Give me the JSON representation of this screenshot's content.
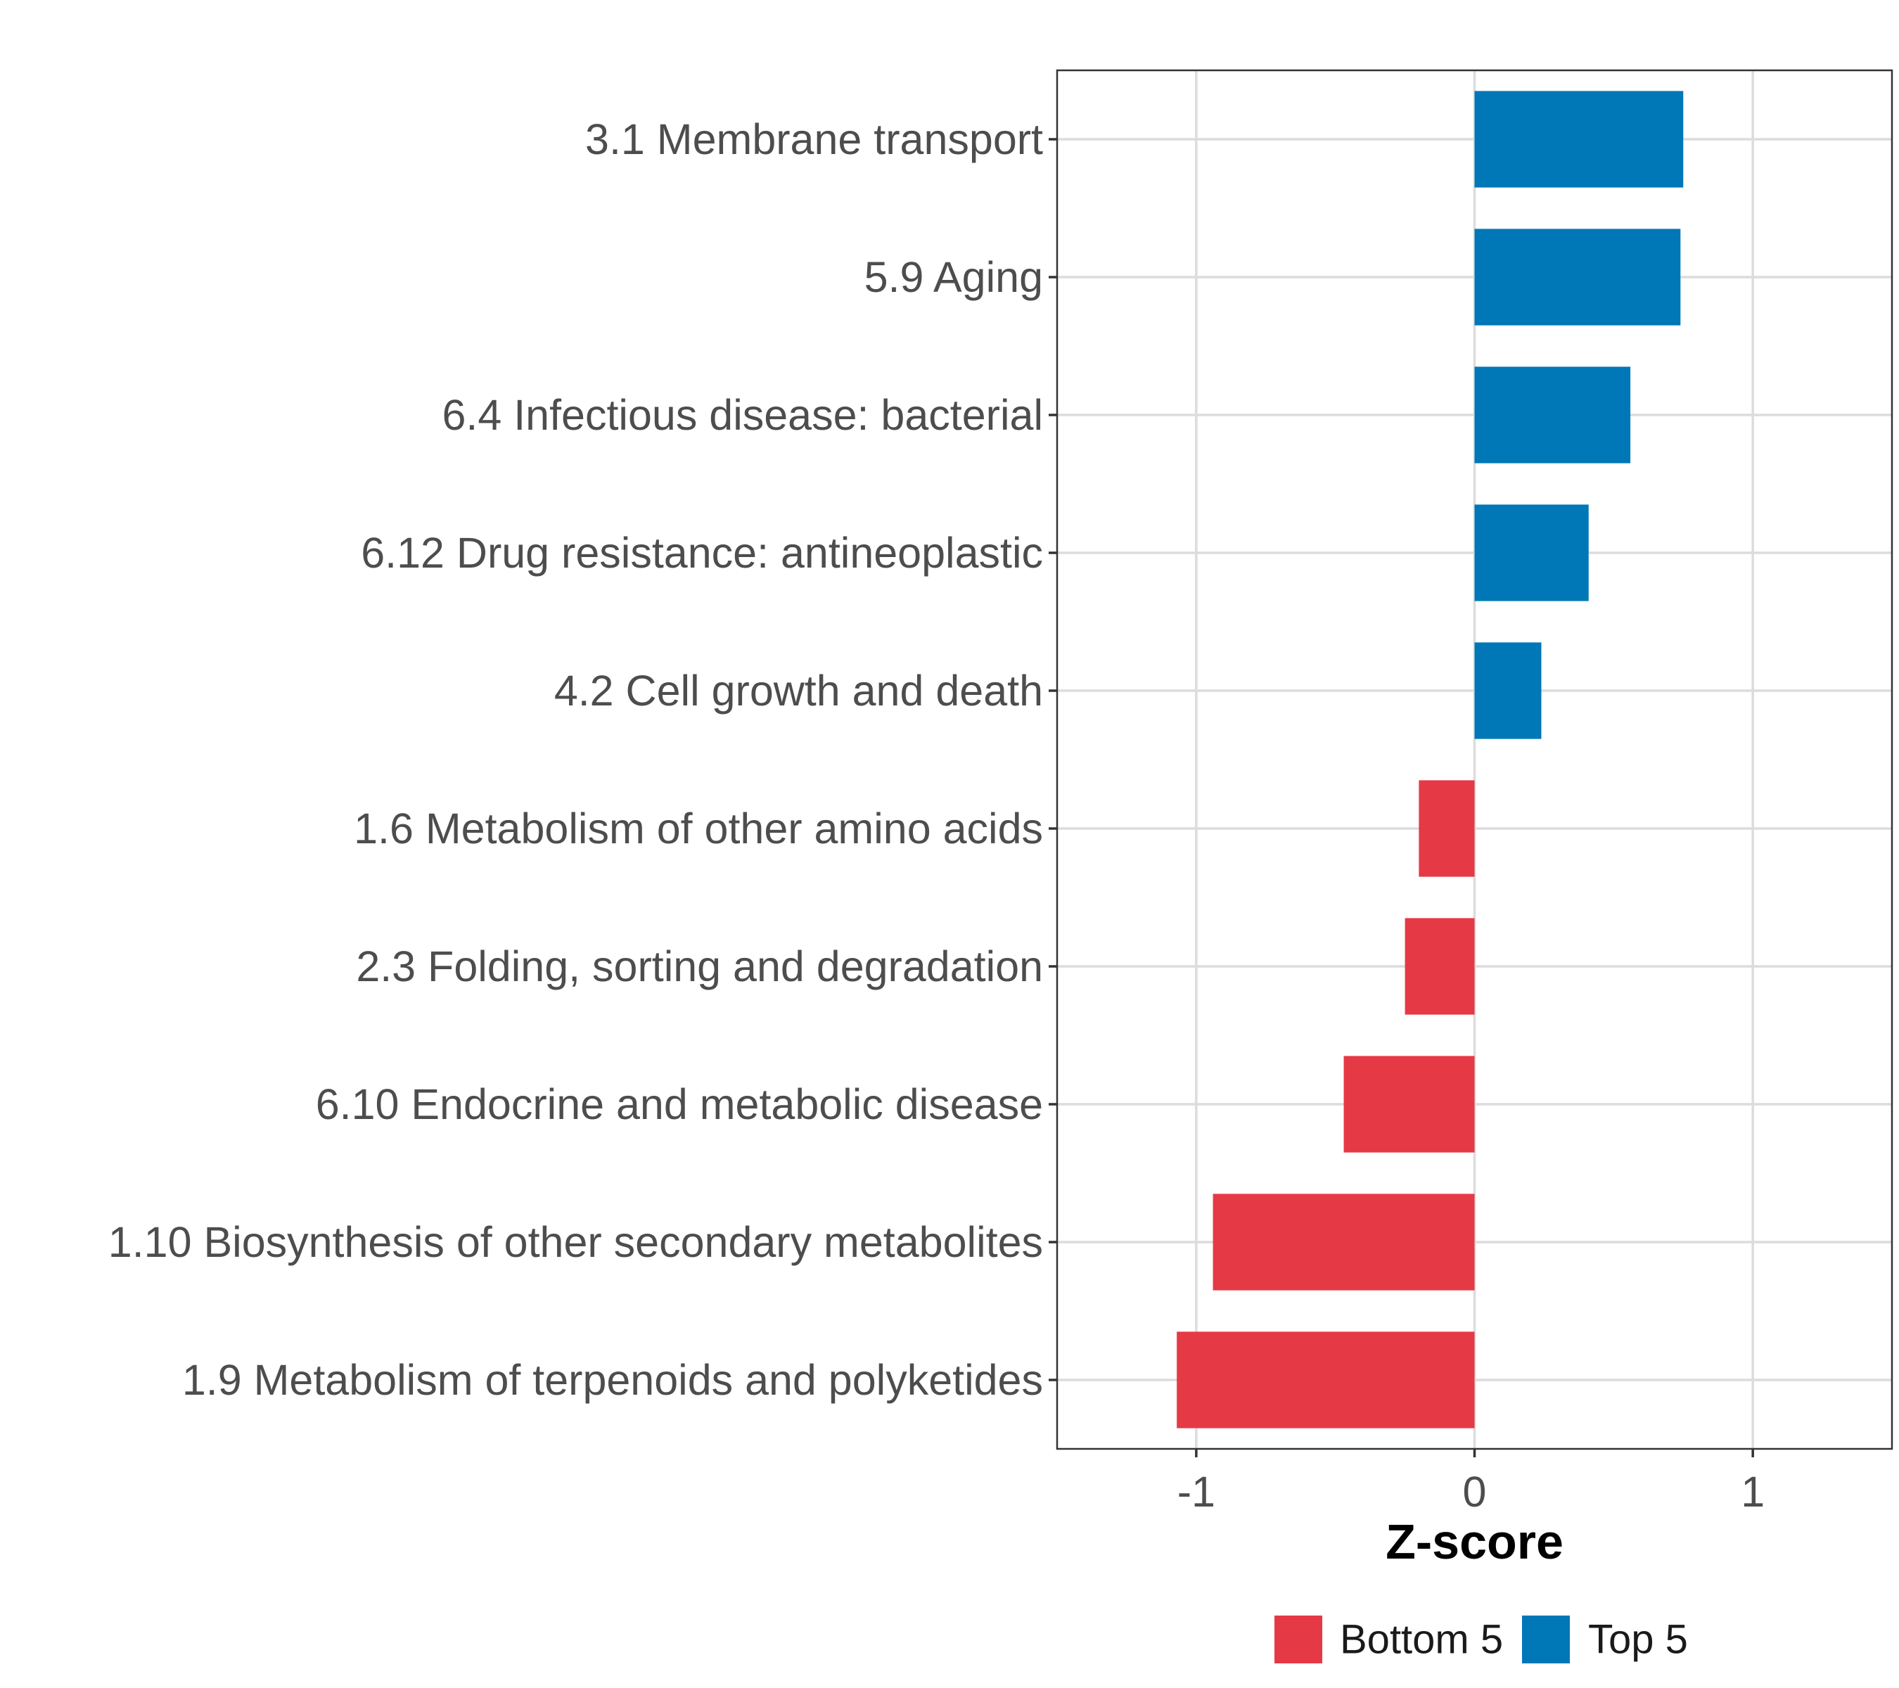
{
  "chart_data": {
    "type": "bar",
    "orientation": "horizontal",
    "title": "",
    "xlabel": "Z-score",
    "ylabel": "",
    "xlim": [
      -1.5,
      1.5
    ],
    "xticks": [
      -1,
      0,
      1
    ],
    "xtick_labels": [
      "-1",
      "0",
      "1"
    ],
    "grid": true,
    "legend_position": "bottom",
    "categories": [
      "3.1 Membrane transport",
      "5.9 Aging",
      "6.4 Infectious disease: bacterial",
      "6.12 Drug resistance: antineoplastic",
      "4.2 Cell growth and death",
      "1.6 Metabolism of other amino acids",
      "2.3 Folding, sorting and degradation",
      "6.10 Endocrine and metabolic disease",
      "1.10 Biosynthesis of other secondary metabolites",
      "1.9 Metabolism of terpenoids and polyketides"
    ],
    "values": [
      0.75,
      0.74,
      0.56,
      0.41,
      0.24,
      -0.2,
      -0.25,
      -0.47,
      -0.94,
      -1.07
    ],
    "groups": [
      "Top 5",
      "Top 5",
      "Top 5",
      "Top 5",
      "Top 5",
      "Bottom 5",
      "Bottom 5",
      "Bottom 5",
      "Bottom 5",
      "Bottom 5"
    ],
    "legend": [
      {
        "label": "Bottom 5",
        "color": "#e63946"
      },
      {
        "label": "Top 5",
        "color": "#0077b6"
      }
    ]
  }
}
